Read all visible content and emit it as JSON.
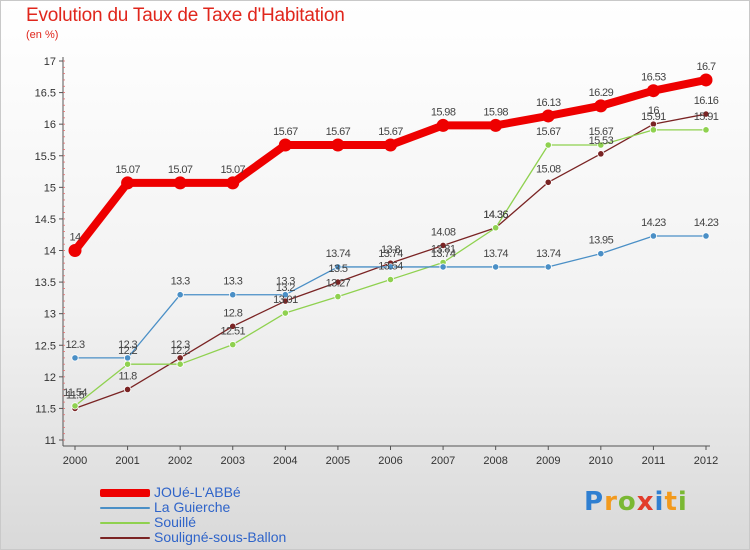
{
  "chart_data": {
    "type": "line",
    "title": "Evolution du Taux de Taxe d'Habitation",
    "subtitle": "(en %)",
    "x": [
      2000,
      2001,
      2002,
      2003,
      2004,
      2005,
      2006,
      2007,
      2008,
      2009,
      2010,
      2011,
      2012
    ],
    "y_ticks": [
      "11",
      "11.5",
      "12",
      "12.5",
      "13",
      "13.5",
      "14",
      "14.5",
      "15",
      "15.5",
      "16",
      "16.5",
      "17"
    ],
    "ylim": [
      11,
      17
    ],
    "grid": false,
    "legend_position": "bottom-left",
    "series": [
      {
        "name": "JOUé-L'ABBé",
        "color": "#ee0000",
        "values": [
          14,
          15.07,
          15.07,
          15.07,
          15.67,
          15.67,
          15.67,
          15.98,
          15.98,
          16.13,
          16.29,
          16.53,
          16.7
        ],
        "labels": [
          "14",
          "15.07",
          "15.07",
          "15.07",
          "15.67",
          "15.67",
          "15.67",
          "15.98",
          "15.98",
          "16.13",
          "16.29",
          "16.53",
          "16.7"
        ]
      },
      {
        "name": "La Guierche",
        "color": "#4a8fc6",
        "values": [
          12.3,
          12.3,
          13.3,
          13.3,
          13.3,
          13.74,
          13.74,
          13.74,
          13.74,
          13.74,
          13.95,
          14.23,
          14.23
        ],
        "labels": [
          "12.3",
          "12.3",
          "13.3",
          "13.3",
          "13.3",
          "13.74",
          "13.74",
          "13.74",
          "13.74",
          "13.74",
          "13.95",
          "14.23",
          "14.23"
        ]
      },
      {
        "name": "Souillé",
        "color": "#8fd14f",
        "values": [
          11.54,
          12.2,
          12.2,
          12.51,
          13.01,
          13.27,
          13.54,
          13.81,
          14.36,
          15.67,
          15.67,
          15.91,
          15.91
        ],
        "labels": [
          "11.54",
          "12.2",
          "12.2",
          "12.51",
          "13.01",
          "13.27",
          "13.54",
          "13.81",
          "14.36",
          "15.67",
          "15.67",
          "15.91",
          "15.91"
        ]
      },
      {
        "name": "Souligné-sous-Ballon",
        "color": "#7a2424",
        "values": [
          11.5,
          11.8,
          12.3,
          12.8,
          13.2,
          13.5,
          13.8,
          14.08,
          14.36,
          15.08,
          15.53,
          16,
          16.16
        ],
        "labels": [
          "11.5",
          "11.8",
          "12.3",
          "12.8",
          "13.2",
          "13.5",
          "13.8",
          "14.08",
          "14.36",
          "15.08",
          "15.53",
          "16",
          "16.16"
        ]
      }
    ]
  },
  "brand": {
    "letters": [
      "P",
      "r",
      "o",
      "x",
      "i",
      "t",
      "i"
    ],
    "colors": [
      "#2f7fd1",
      "#f29a1d",
      "#7ab833",
      "#e23c2b",
      "#2f7fd1",
      "#f29a1d",
      "#7ab833"
    ]
  }
}
